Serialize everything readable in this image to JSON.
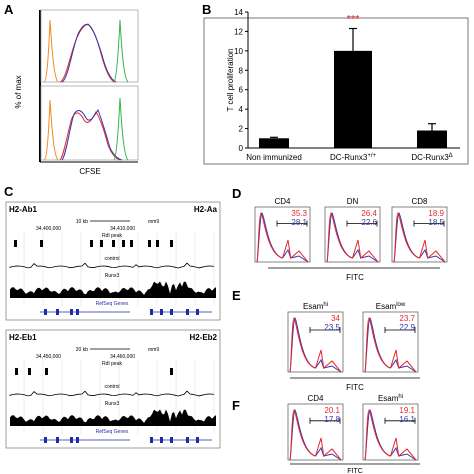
{
  "panels": {
    "A": {
      "label": "A",
      "ylabel": "% of max",
      "xlabel": "CFSE"
    },
    "B": {
      "label": "B",
      "ylabel": "T cell proliferation",
      "significance": "***",
      "chart_data": {
        "type": "bar",
        "categories": [
          "Non immunized",
          "DC-Runx3+/+",
          "DC-Runx3Δ"
        ],
        "values": [
          1.0,
          10.0,
          1.8
        ],
        "errors": [
          0.1,
          2.3,
          0.7
        ],
        "ylim": [
          0,
          14
        ],
        "yticks": [
          0,
          2,
          4,
          6,
          8,
          10,
          12,
          14
        ],
        "ylabel": "T cell proliferation"
      },
      "xtick_parts": [
        {
          "main": "Non immunized",
          "sup": ""
        },
        {
          "main": "DC-Runx3",
          "sup": "+/+"
        },
        {
          "main": "DC-Runx3",
          "sup": "Δ"
        }
      ]
    },
    "C": {
      "label": "C",
      "top": {
        "left_gene": "H2-Ab1",
        "right_gene": "H2-Aa",
        "scale": "10 kb",
        "build": "mm9",
        "coord1": "34,400,000",
        "coord2": "34,410,000",
        "tracks": [
          "RdI peak",
          "control",
          "Runx3",
          "RefSeq Genes"
        ]
      },
      "bottom": {
        "left_gene": "H2-Eb1",
        "right_gene": "H2-Eb2",
        "scale": "20 kb",
        "build": "mm9",
        "coord1": "34,450,000",
        "coord2": "34,460,000",
        "tracks": [
          "RdI peak",
          "control",
          "Runx3",
          "RefSeq Genes"
        ]
      }
    },
    "D": {
      "label": "D",
      "xlabel": "FITC",
      "subpanels": [
        {
          "title": "CD4",
          "red": "35.3",
          "blue": "28.1"
        },
        {
          "title": "DN",
          "red": "26.4",
          "blue": "22.6"
        },
        {
          "title": "CD8",
          "red": "18.9",
          "blue": "18.5"
        }
      ]
    },
    "E": {
      "label": "E",
      "xlabel": "FITC",
      "subpanels": [
        {
          "title": "Esam",
          "sup": "hi",
          "red": "34",
          "blue": "23.5"
        },
        {
          "title": "Esam",
          "sup": "low",
          "red": "23.7",
          "blue": "22.9"
        }
      ]
    },
    "F": {
      "label": "F",
      "xlabel": "FITC",
      "subpanels": [
        {
          "title": "CD4",
          "sup": "",
          "red": "20.1",
          "blue": "17.8"
        },
        {
          "title": "Esam",
          "sup": "hi",
          "red": "19.1",
          "blue": "16.1"
        }
      ]
    }
  },
  "colors": {
    "red": "#e8262b",
    "blue": "#3538a8",
    "green": "#35b34a",
    "orange": "#f08a24",
    "sig": "#d8202a"
  }
}
